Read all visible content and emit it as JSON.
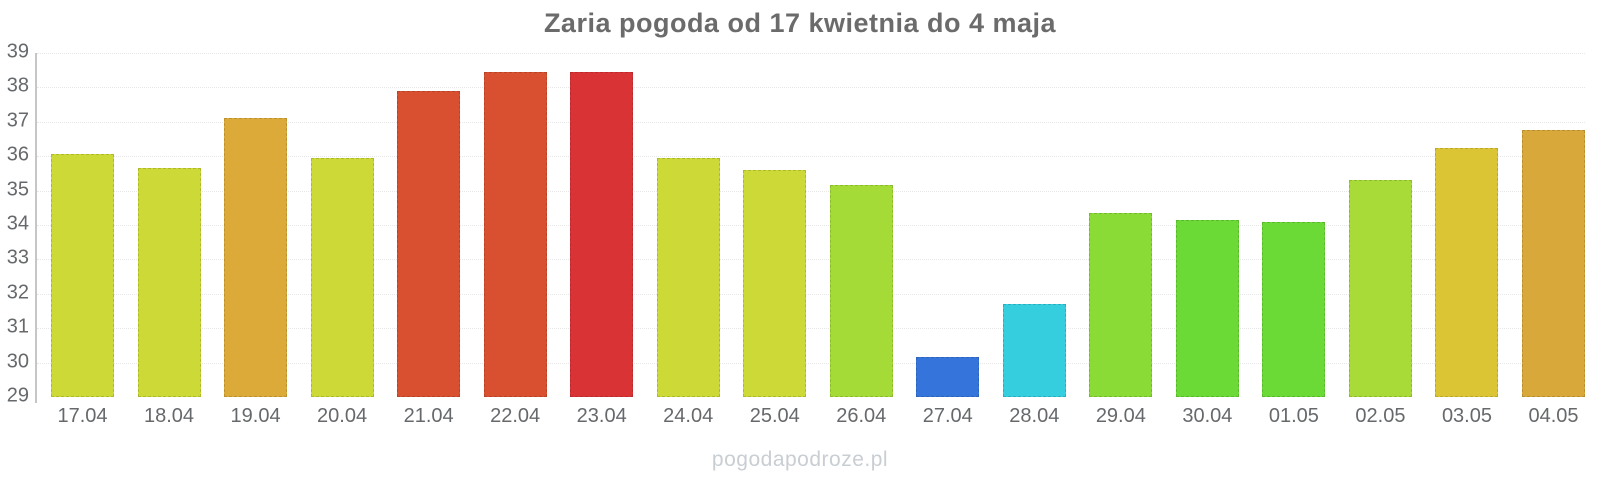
{
  "title": "Zaria pogoda od 17 kwietnia do 4 maja",
  "watermark": "pogodapodroze.pl",
  "colors": {
    "background": "#ffffff",
    "title_text": "#6b6b6b",
    "tick_text": "#66696c",
    "grid": "#e7e7e7",
    "axis": "#c4c6c8",
    "watermark_text": "#c9ced3"
  },
  "chart_data": {
    "type": "bar",
    "title": "Zaria pogoda od 17 kwietnia do 4 maja",
    "xlabel": "",
    "ylabel": "",
    "ylim": [
      29,
      39
    ],
    "yticks": [
      29,
      30,
      31,
      32,
      33,
      34,
      35,
      36,
      37,
      38,
      39
    ],
    "grid": "horizontal-dotted",
    "legend": "none",
    "categories": [
      "17.04",
      "18.04",
      "19.04",
      "20.04",
      "21.04",
      "22.04",
      "23.04",
      "24.04",
      "25.04",
      "26.04",
      "27.04",
      "28.04",
      "29.04",
      "30.04",
      "01.05",
      "02.05",
      "03.05",
      "04.05"
    ],
    "values": [
      36.05,
      35.65,
      37.1,
      35.95,
      37.9,
      38.45,
      38.45,
      35.95,
      35.6,
      35.15,
      30.15,
      31.7,
      34.35,
      34.15,
      34.1,
      35.3,
      36.25,
      36.75
    ],
    "bar_colors": [
      "#ccd936",
      "#ccd936",
      "#dcaa38",
      "#ccd936",
      "#d8502f",
      "#d8502f",
      "#d93336",
      "#ccd936",
      "#ccd936",
      "#a5db37",
      "#3575db",
      "#35cede",
      "#8adb35",
      "#6bd936",
      "#6bd936",
      "#a8db38",
      "#dbc535",
      "#d9a83a"
    ]
  }
}
